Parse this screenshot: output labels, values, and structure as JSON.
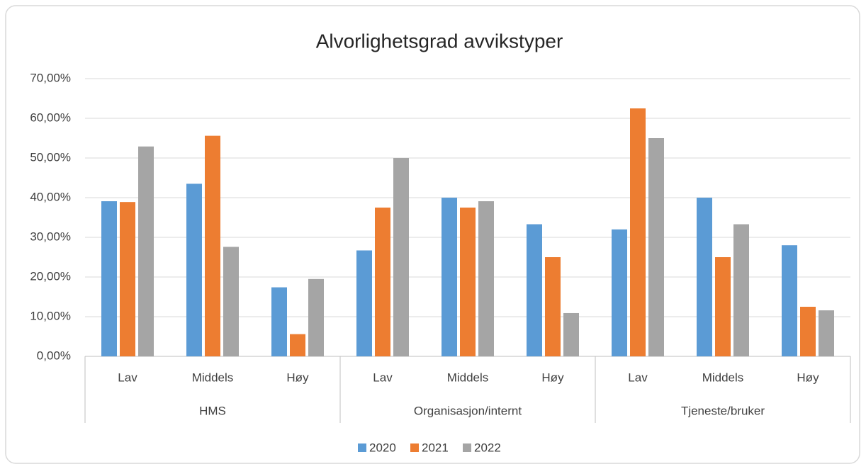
{
  "chart_data": {
    "type": "bar",
    "title": "Alvorlighetsgrad avvikstyper",
    "categories": [
      "Lav",
      "Middels",
      "Høy",
      "Lav",
      "Middels",
      "Høy",
      "Lav",
      "Middels",
      "Høy"
    ],
    "category_groups": [
      "HMS",
      "Organisasjon/internt",
      "Tjeneste/bruker"
    ],
    "series": [
      {
        "name": "2020",
        "color": "#5b9bd5",
        "values": [
          39.1,
          43.5,
          17.4,
          26.7,
          40.0,
          33.3,
          32.0,
          40.0,
          28.0
        ]
      },
      {
        "name": "2021",
        "color": "#ed7d31",
        "values": [
          38.9,
          55.6,
          5.6,
          37.5,
          37.5,
          25.0,
          62.5,
          25.0,
          12.5
        ]
      },
      {
        "name": "2022",
        "color": "#a5a5a5",
        "values": [
          52.9,
          27.6,
          19.5,
          50.0,
          39.1,
          10.9,
          55.0,
          33.3,
          11.6
        ]
      }
    ],
    "ylim": [
      0,
      70
    ],
    "yticks": [
      {
        "value": 0,
        "label": "0,00%"
      },
      {
        "value": 10,
        "label": "10,00%"
      },
      {
        "value": 20,
        "label": "20,00%"
      },
      {
        "value": 30,
        "label": "30,00%"
      },
      {
        "value": 40,
        "label": "40,00%"
      },
      {
        "value": 50,
        "label": "50,00%"
      },
      {
        "value": 60,
        "label": "60,00%"
      },
      {
        "value": 70,
        "label": "70,00%"
      }
    ],
    "grid": true,
    "legend": "bottom"
  }
}
